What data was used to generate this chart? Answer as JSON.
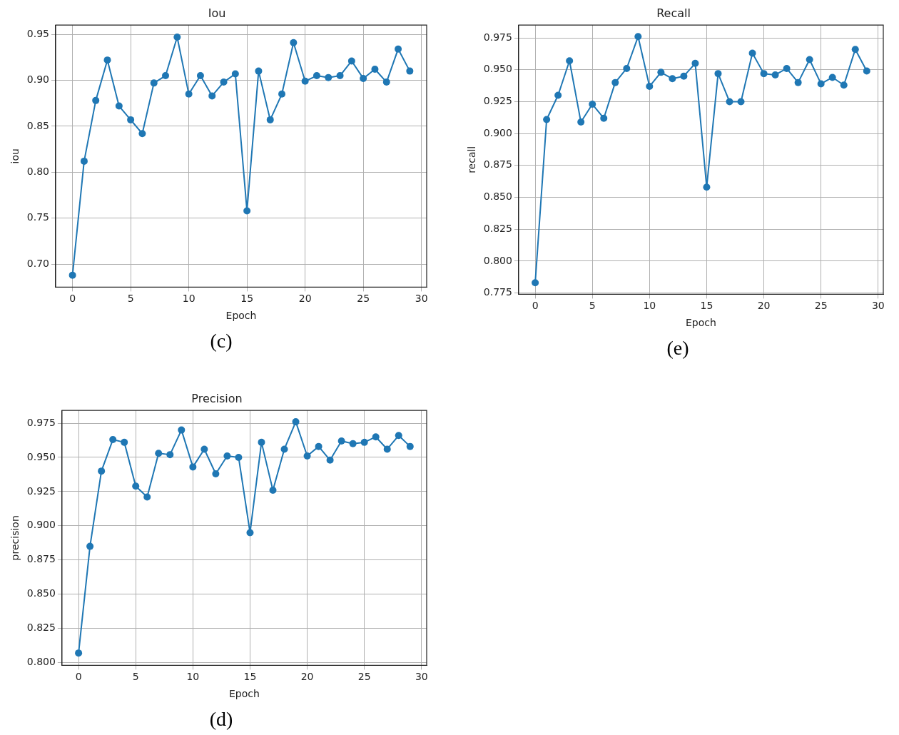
{
  "chart_data": [
    {
      "type": "line",
      "title": "Iou",
      "xlabel": "Epoch",
      "ylabel": "iou",
      "annotations": [
        "(c)"
      ],
      "grid": true,
      "marker": "circle",
      "line_style": "solid",
      "x": [
        0,
        1,
        2,
        3,
        4,
        5,
        6,
        7,
        8,
        9,
        10,
        11,
        12,
        13,
        14,
        15,
        16,
        17,
        18,
        19,
        20,
        21,
        22,
        23,
        24,
        25,
        26,
        27,
        28,
        29
      ],
      "series": [
        {
          "color": "#1f77b4",
          "values": [
            0.688,
            0.812,
            0.878,
            0.922,
            0.872,
            0.857,
            0.842,
            0.897,
            0.905,
            0.947,
            0.885,
            0.905,
            0.883,
            0.898,
            0.907,
            0.758,
            0.91,
            0.857,
            0.885,
            0.941,
            0.899,
            0.905,
            0.903,
            0.905,
            0.921,
            0.902,
            0.912,
            0.898,
            0.934,
            0.91
          ]
        }
      ],
      "xlim": [
        -1.45,
        30.45
      ],
      "xticks": [
        0,
        5,
        10,
        15,
        20,
        25,
        30
      ],
      "ylim": [
        0.675,
        0.96
      ],
      "yticks": [
        {
          "value": 0.7,
          "label": "0.70"
        },
        0.75,
        {
          "value": 0.8,
          "label": "0.80"
        },
        0.85,
        {
          "value": 0.9,
          "label": "0.90"
        },
        0.95
      ]
    },
    {
      "type": "line",
      "title": "Recall",
      "xlabel": "Epoch",
      "ylabel": "recall",
      "annotations": [
        "(e)"
      ],
      "grid": true,
      "marker": "circle",
      "line_style": "solid",
      "x": [
        0,
        1,
        2,
        3,
        4,
        5,
        6,
        7,
        8,
        9,
        10,
        11,
        12,
        13,
        14,
        15,
        16,
        17,
        18,
        19,
        20,
        21,
        22,
        23,
        24,
        25,
        26,
        27,
        28,
        29
      ],
      "series": [
        {
          "color": "#1f77b4",
          "values": [
            0.783,
            0.911,
            0.93,
            0.957,
            0.909,
            0.923,
            0.912,
            0.94,
            0.951,
            0.976,
            0.937,
            0.948,
            0.943,
            0.945,
            0.955,
            0.858,
            0.947,
            0.925,
            0.925,
            0.963,
            0.947,
            0.946,
            0.951,
            0.94,
            0.958,
            0.939,
            0.944,
            0.938,
            0.966,
            0.949
          ]
        }
      ],
      "xlim": [
        -1.45,
        30.45
      ],
      "xticks": [
        0,
        5,
        10,
        15,
        20,
        25,
        30
      ],
      "ylim": [
        0.774,
        0.985
      ],
      "yticks": [
        0.775,
        {
          "value": 0.8,
          "label": "0.800"
        },
        0.825,
        {
          "value": 0.85,
          "label": "0.850"
        },
        0.875,
        {
          "value": 0.9,
          "label": "0.900"
        },
        0.925,
        {
          "value": 0.95,
          "label": "0.950"
        },
        0.975
      ]
    },
    {
      "type": "line",
      "title": "Precision",
      "xlabel": "Epoch",
      "ylabel": "precision",
      "annotations": [
        "(d)"
      ],
      "grid": true,
      "marker": "circle",
      "line_style": "solid",
      "x": [
        0,
        1,
        2,
        3,
        4,
        5,
        6,
        7,
        8,
        9,
        10,
        11,
        12,
        13,
        14,
        15,
        16,
        17,
        18,
        19,
        20,
        21,
        22,
        23,
        24,
        25,
        26,
        27,
        28,
        29
      ],
      "series": [
        {
          "color": "#1f77b4",
          "values": [
            0.807,
            0.885,
            0.94,
            0.963,
            0.961,
            0.929,
            0.921,
            0.953,
            0.952,
            0.97,
            0.943,
            0.956,
            0.938,
            0.951,
            0.95,
            0.895,
            0.961,
            0.926,
            0.956,
            0.976,
            0.951,
            0.958,
            0.948,
            0.962,
            0.96,
            0.961,
            0.965,
            0.956,
            0.966,
            0.958
          ]
        }
      ],
      "xlim": [
        -1.45,
        30.45
      ],
      "xticks": [
        0,
        5,
        10,
        15,
        20,
        25,
        30
      ],
      "ylim": [
        0.798,
        0.9843
      ],
      "yticks": [
        {
          "value": 0.8,
          "label": "0.800"
        },
        0.825,
        {
          "value": 0.85,
          "label": "0.850"
        },
        0.875,
        {
          "value": 0.9,
          "label": "0.900"
        },
        0.925,
        {
          "value": 0.95,
          "label": "0.950"
        },
        0.975
      ]
    }
  ]
}
